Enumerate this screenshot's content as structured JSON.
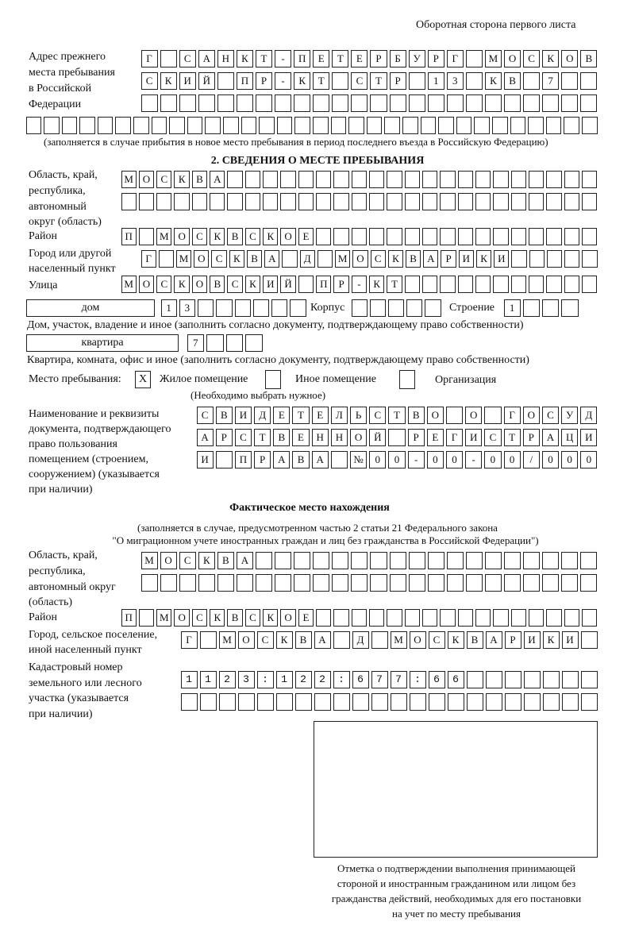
{
  "header": "Оборотная сторона первого листа",
  "prev_address": {
    "label": [
      "Адрес прежнего",
      "места пребывания",
      "в Российской",
      "Федерации"
    ],
    "rows": [
      "Г САНКТ-ПЕТЕРБУРГ МОСКОВ",
      "СКИЙ ПР-КТ СТР 13 КВ 7",
      "",
      ""
    ],
    "note": "(заполняется в случае прибытия в новое место пребывания в период последнего въезда в Российскую Федерацию)"
  },
  "section2": {
    "title": "2. СВЕДЕНИЯ О МЕСТЕ ПРЕБЫВАНИЯ",
    "region_label": [
      "Область, край,",
      "республика,",
      "автономный",
      "округ (область)"
    ],
    "region_rows": [
      "МОСКВА",
      ""
    ],
    "district_label": "Район",
    "district": "П МОСКВСКОЕ",
    "city_label": [
      "Город или другой",
      "населенный пункт"
    ],
    "city": "Г МОСКВА Д МОСКВАРИКИ",
    "street_label": "Улица",
    "street": "МОСКОВСКИЙ ПР-КТ",
    "house_type": "дом",
    "house": "13",
    "korpus_label": "Корпус",
    "korpus": "",
    "building_label": "Строение",
    "building": "1",
    "house_note": "Дом, участок, владение и иное (заполнить согласно документу, подтверждающему право собственности)",
    "apt_type": "квартира",
    "apt": "7",
    "apt_note": "Квартира, комната, офис и иное (заполнить согласно документу, подтверждающему право собственности)",
    "stay_label": "Место пребывания:",
    "stay_options": [
      {
        "label": "Жилое помещение",
        "mark": "X"
      },
      {
        "label": "Иное помещение",
        "mark": ""
      },
      {
        "label": "Организация",
        "mark": ""
      }
    ],
    "stay_note": "(Необходимо выбрать нужное)",
    "doc_label": [
      "Наименование и реквизиты",
      "документа, подтверждающего",
      "право пользования",
      "помещением (строением,",
      "сооружением) (указывается",
      "при наличии)"
    ],
    "doc_rows": [
      "СВИДЕТЕЛЬСТВО О ГОСУД",
      "АРСТВЕННОЙ РЕГИСТРАЦИ",
      "И ПРАВА №00-00-00/000"
    ]
  },
  "actual": {
    "title": "Фактическое место нахождения",
    "note": [
      "(заполняется в случае, предусмотренном частью 2 статьи 21 Федерального закона",
      "\"О миграционном учете иностранных граждан и лиц без гражданства в Российской Федерации\")"
    ],
    "region_label": [
      "Область, край,",
      "республика,",
      "автономный округ",
      "(область)"
    ],
    "region_rows": [
      "МОСКВА",
      ""
    ],
    "district_label": "Район",
    "district": "П МОСКВСКОЕ",
    "city_label": [
      "Город, сельское поселение,",
      "иной населенный пункт"
    ],
    "city": "Г МОСКВА Д МОСКВАРИКИ",
    "cadastre_label": [
      "Кадастровый номер",
      "земельного или лесного",
      "участка (указывается",
      "при наличии)"
    ],
    "cadastre_rows": [
      "1123:122:677:66",
      ""
    ]
  },
  "stamp_caption": [
    "Отметка о подтверждении выполнения принимающей",
    "стороной и иностранным гражданином или лицом без",
    "гражданства действий, необходимых для его постановки",
    "на учет по месту пребывания"
  ]
}
